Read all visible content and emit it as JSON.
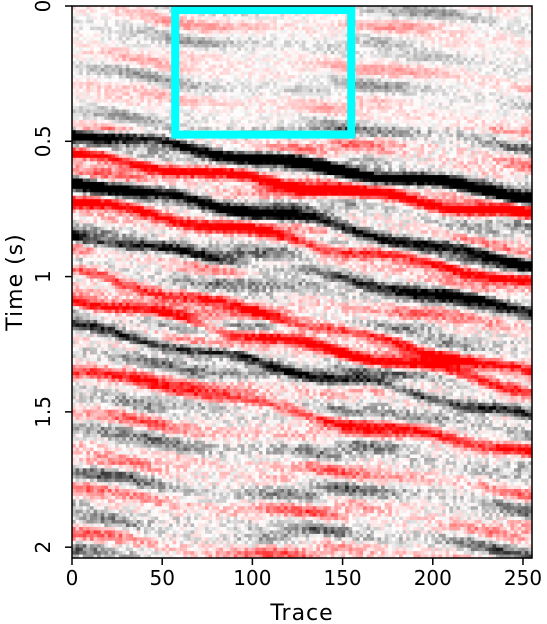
{
  "chart_data": {
    "type": "heatmap",
    "title": "",
    "xlabel": "Trace",
    "ylabel": "Time (s)",
    "xlim": [
      0,
      255
    ],
    "ylim": [
      0,
      2.04
    ],
    "y_inverted": true,
    "grid": false,
    "x_ticks": [
      0,
      50,
      100,
      150,
      200,
      250
    ],
    "x_tick_labels": [
      "0",
      "50",
      "100",
      "150",
      "200",
      "250"
    ],
    "y_ticks": [
      0,
      0.5,
      1,
      1.5,
      2
    ],
    "y_tick_labels": [
      "0",
      "0.5",
      "1",
      "1.5",
      "2"
    ],
    "colormap": {
      "negative": "#ff0000",
      "zero": "#ffffff",
      "positive": "#000000"
    },
    "annotations": [
      {
        "type": "rectangle",
        "color": "#00ffff",
        "x_range": [
          55,
          157
        ],
        "y_range": [
          0,
          0.49
        ]
      }
    ],
    "reflectors": [
      {
        "t_start": 0.46,
        "t_end": 0.71,
        "polarity": "positive",
        "strength": 1.0
      },
      {
        "t_start": 0.55,
        "t_end": 0.78,
        "polarity": "negative",
        "strength": 0.9
      },
      {
        "t_start": 0.64,
        "t_end": 0.95,
        "polarity": "positive",
        "strength": 0.8
      },
      {
        "t_start": 0.72,
        "t_end": 1.02,
        "polarity": "negative",
        "strength": 0.7
      },
      {
        "t_start": 0.85,
        "t_end": 1.12,
        "polarity": "positive",
        "strength": 0.6
      },
      {
        "t_start": 0.98,
        "t_end": 1.36,
        "polarity": "negative",
        "strength": 0.6
      },
      {
        "t_start": 1.08,
        "t_end": 1.42,
        "polarity": "negative",
        "strength": 0.8
      },
      {
        "t_start": 1.18,
        "t_end": 1.52,
        "polarity": "positive",
        "strength": 0.7
      },
      {
        "t_start": 1.35,
        "t_end": 1.65,
        "polarity": "negative",
        "strength": 0.5
      }
    ]
  }
}
